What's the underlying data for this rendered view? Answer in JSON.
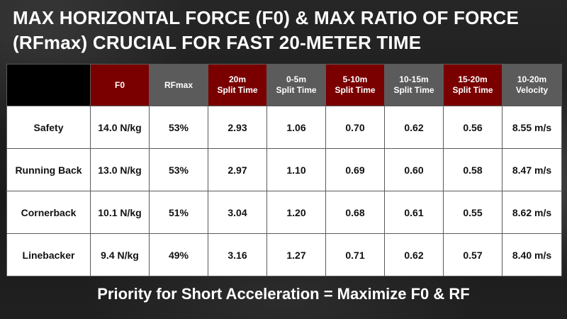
{
  "title": "MAX HORIZONTAL FORCE (F0) & MAX RATIO OF FORCE (RFmax) CRUCIAL FOR FAST 20-METER TIME",
  "footer": "Priority for Short Acceleration = Maximize F0 & RF",
  "colors": {
    "header_red": "#7a0000",
    "header_gray": "#5b5b5b",
    "highlight_yellow": "#ffff00",
    "row_label_bg": "#000000"
  },
  "chart_data": {
    "type": "table",
    "columns": [
      {
        "label": "F0",
        "style": "red",
        "highlight": true
      },
      {
        "label": "RFmax",
        "style": "gray",
        "highlight": true
      },
      {
        "label": "20m Split Time",
        "style": "red",
        "highlight": false
      },
      {
        "label": "0-5m Split Time",
        "style": "gray",
        "highlight": true
      },
      {
        "label": "5-10m Split Time",
        "style": "red",
        "highlight": false
      },
      {
        "label": "10-15m Split Time",
        "style": "gray",
        "highlight": false
      },
      {
        "label": "15-20m Split Time",
        "style": "red",
        "highlight": false
      },
      {
        "label": "10-20m Velocity",
        "style": "gray",
        "highlight": false
      }
    ],
    "rows": [
      {
        "label": "Safety",
        "values": [
          "14.0 N/kg",
          "53%",
          "2.93",
          "1.06",
          "0.70",
          "0.62",
          "0.56",
          "8.55 m/s"
        ]
      },
      {
        "label": "Running Back",
        "values": [
          "13.0 N/kg",
          "53%",
          "2.97",
          "1.10",
          "0.69",
          "0.60",
          "0.58",
          "8.47 m/s"
        ]
      },
      {
        "label": "Cornerback",
        "values": [
          "10.1 N/kg",
          "51%",
          "3.04",
          "1.20",
          "0.68",
          "0.61",
          "0.55",
          "8.62 m/s"
        ]
      },
      {
        "label": "Linebacker",
        "values": [
          "9.4 N/kg",
          "49%",
          "3.16",
          "1.27",
          "0.71",
          "0.62",
          "0.57",
          "8.40 m/s"
        ]
      }
    ]
  }
}
